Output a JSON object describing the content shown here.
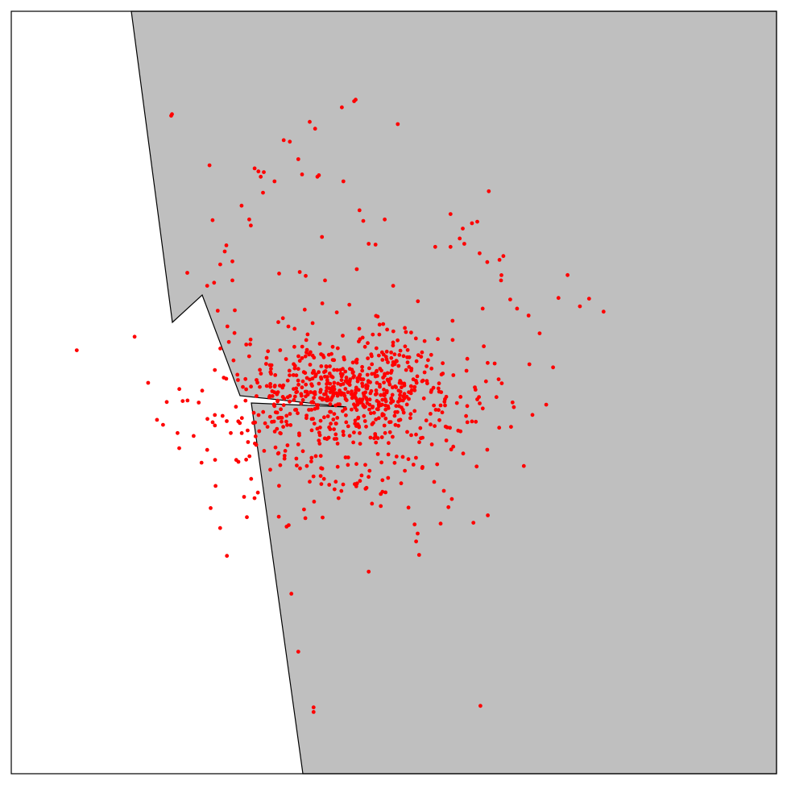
{
  "map": {
    "type": "point-density-map",
    "colors": {
      "land": "#bfbfbf",
      "water": "#ffffff",
      "coastline": "#000000",
      "frame": "#000000",
      "points": "#ff0000"
    },
    "has_text_labels": false
  },
  "chart_data": {
    "type": "scatter",
    "title": "",
    "xlabel": "",
    "ylabel": "",
    "xlim": [
      0,
      100
    ],
    "ylim": [
      0,
      100
    ],
    "grid": false,
    "legend": "none",
    "cluster": {
      "center": [
        45.4,
        50.9
      ],
      "spread": [
        5.5,
        3.3
      ],
      "point_count": 420,
      "seed": 7
    },
    "halo": {
      "center": [
        41.5,
        46.5
      ],
      "spread": [
        9.5,
        6.3
      ],
      "point_count": 380,
      "seed": 11
    },
    "outliers": [
      [
        20.9,
        86.3
      ],
      [
        21.0,
        86.5
      ],
      [
        43.2,
        87.4
      ],
      [
        44.8,
        88.2
      ],
      [
        45.0,
        88.4
      ],
      [
        50.5,
        85.2
      ],
      [
        39.0,
        85.5
      ],
      [
        39.7,
        84.6
      ],
      [
        35.6,
        83.1
      ],
      [
        36.4,
        82.9
      ],
      [
        37.5,
        80.6
      ],
      [
        25.9,
        79.8
      ],
      [
        31.8,
        79.4
      ],
      [
        32.3,
        79.0
      ],
      [
        32.6,
        78.3
      ],
      [
        33.0,
        78.9
      ],
      [
        38.0,
        78.6
      ],
      [
        40.0,
        78.3
      ],
      [
        40.2,
        78.5
      ],
      [
        43.4,
        77.7
      ],
      [
        34.4,
        77.7
      ],
      [
        32.9,
        76.2
      ],
      [
        62.4,
        76.4
      ],
      [
        30.1,
        74.5
      ],
      [
        45.5,
        73.9
      ],
      [
        57.4,
        73.4
      ],
      [
        46.0,
        72.5
      ],
      [
        48.8,
        72.7
      ],
      [
        26.3,
        72.6
      ],
      [
        31.1,
        72.7
      ],
      [
        31.3,
        71.9
      ],
      [
        60.2,
        72.2
      ],
      [
        60.9,
        72.4
      ],
      [
        59.0,
        71.5
      ],
      [
        58.6,
        70.2
      ],
      [
        59.2,
        69.5
      ],
      [
        40.6,
        70.4
      ],
      [
        46.7,
        69.5
      ],
      [
        47.6,
        69.4
      ],
      [
        55.4,
        69.1
      ],
      [
        57.4,
        69.1
      ],
      [
        28.1,
        69.3
      ],
      [
        27.9,
        68.5
      ],
      [
        63.8,
        67.4
      ],
      [
        64.3,
        67.9
      ],
      [
        62.2,
        67.1
      ],
      [
        28.9,
        67.2
      ],
      [
        27.3,
        66.8
      ],
      [
        72.7,
        65.4
      ],
      [
        23.0,
        65.7
      ],
      [
        26.5,
        64.4
      ],
      [
        64.0,
        64.7
      ],
      [
        28.9,
        64.7
      ],
      [
        49.9,
        64.0
      ],
      [
        35.0,
        65.6
      ],
      [
        37.7,
        65.8
      ],
      [
        41.0,
        64.7
      ],
      [
        25.6,
        64.0
      ],
      [
        71.5,
        62.4
      ],
      [
        75.5,
        62.3
      ],
      [
        65.2,
        62.2
      ],
      [
        74.3,
        61.3
      ],
      [
        66.1,
        61.0
      ],
      [
        77.4,
        60.6
      ],
      [
        67.6,
        60.1
      ],
      [
        61.6,
        61.0
      ],
      [
        67.7,
        53.7
      ],
      [
        70.8,
        53.3
      ],
      [
        64.1,
        51.2
      ],
      [
        69.9,
        48.4
      ],
      [
        65.5,
        48.7
      ],
      [
        60.9,
        49.1
      ],
      [
        63.4,
        49.4
      ],
      [
        65.3,
        45.5
      ],
      [
        59.6,
        46.1
      ],
      [
        58.4,
        45.0
      ],
      [
        58.7,
        44.9
      ],
      [
        62.2,
        42.5
      ],
      [
        39.0,
        38.3
      ],
      [
        42.4,
        38.3
      ],
      [
        48.5,
        38.5
      ],
      [
        48.9,
        36.9
      ],
      [
        51.9,
        34.9
      ],
      [
        52.7,
        32.7
      ],
      [
        56.1,
        32.8
      ],
      [
        53.1,
        31.5
      ],
      [
        53.3,
        28.7
      ],
      [
        46.7,
        26.5
      ],
      [
        36.6,
        23.6
      ],
      [
        37.5,
        16.0
      ],
      [
        39.5,
        8.7
      ],
      [
        39.5,
        8.1
      ],
      [
        61.3,
        8.9
      ]
    ]
  }
}
